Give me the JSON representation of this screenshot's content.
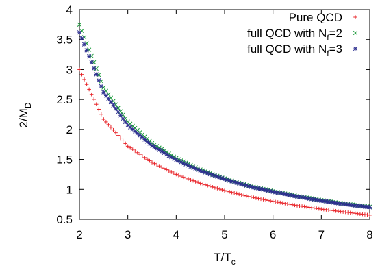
{
  "chart_data": {
    "type": "scatter",
    "title": "",
    "xlabel": {
      "base": "T/T",
      "sub": "c"
    },
    "ylabel": {
      "base": "2/M",
      "sub": "D"
    },
    "xlim": [
      2,
      8
    ],
    "ylim": [
      0.5,
      4
    ],
    "xticks": [
      2,
      3,
      4,
      5,
      6,
      7,
      8
    ],
    "yticks": [
      0.5,
      1,
      1.5,
      2,
      2.5,
      3,
      3.5,
      4
    ],
    "grid": false,
    "legend_position": "top-right",
    "series": [
      {
        "name": "Pure QCD",
        "label_parts": [
          "Pure QCD"
        ],
        "marker": "plus",
        "color": "#e8252a",
        "x_range": [
          2,
          8
        ],
        "n_points": 121,
        "x": [
          2,
          2.5,
          3,
          3.5,
          4,
          4.5,
          5,
          5.5,
          6,
          6.5,
          7,
          7.5,
          8
        ],
        "values": [
          3.0,
          2.17,
          1.72,
          1.45,
          1.25,
          1.1,
          0.98,
          0.88,
          0.8,
          0.73,
          0.67,
          0.62,
          0.57
        ]
      },
      {
        "name": "full QCD with Nf=2",
        "label_parts": [
          "full QCD with N",
          "f",
          "=2"
        ],
        "marker": "x",
        "color": "#1a9b3a",
        "x_range": [
          2,
          8
        ],
        "n_points": 121,
        "x": [
          2,
          2.5,
          3,
          3.5,
          4,
          4.5,
          5,
          5.5,
          6,
          6.5,
          7,
          7.5,
          8
        ],
        "values": [
          3.75,
          2.7,
          2.13,
          1.77,
          1.52,
          1.33,
          1.18,
          1.06,
          0.97,
          0.89,
          0.82,
          0.76,
          0.71
        ]
      },
      {
        "name": "full QCD with Nf=3",
        "label_parts": [
          "full QCD with N",
          "f",
          "=3"
        ],
        "marker": "star",
        "color": "#2d2f8f",
        "x_range": [
          2,
          8
        ],
        "n_points": 121,
        "x": [
          2,
          2.5,
          3,
          3.5,
          4,
          4.5,
          5,
          5.5,
          6,
          6.5,
          7,
          7.5,
          8
        ],
        "values": [
          3.62,
          2.62,
          2.07,
          1.73,
          1.49,
          1.31,
          1.17,
          1.05,
          0.96,
          0.88,
          0.81,
          0.75,
          0.7
        ]
      }
    ]
  }
}
